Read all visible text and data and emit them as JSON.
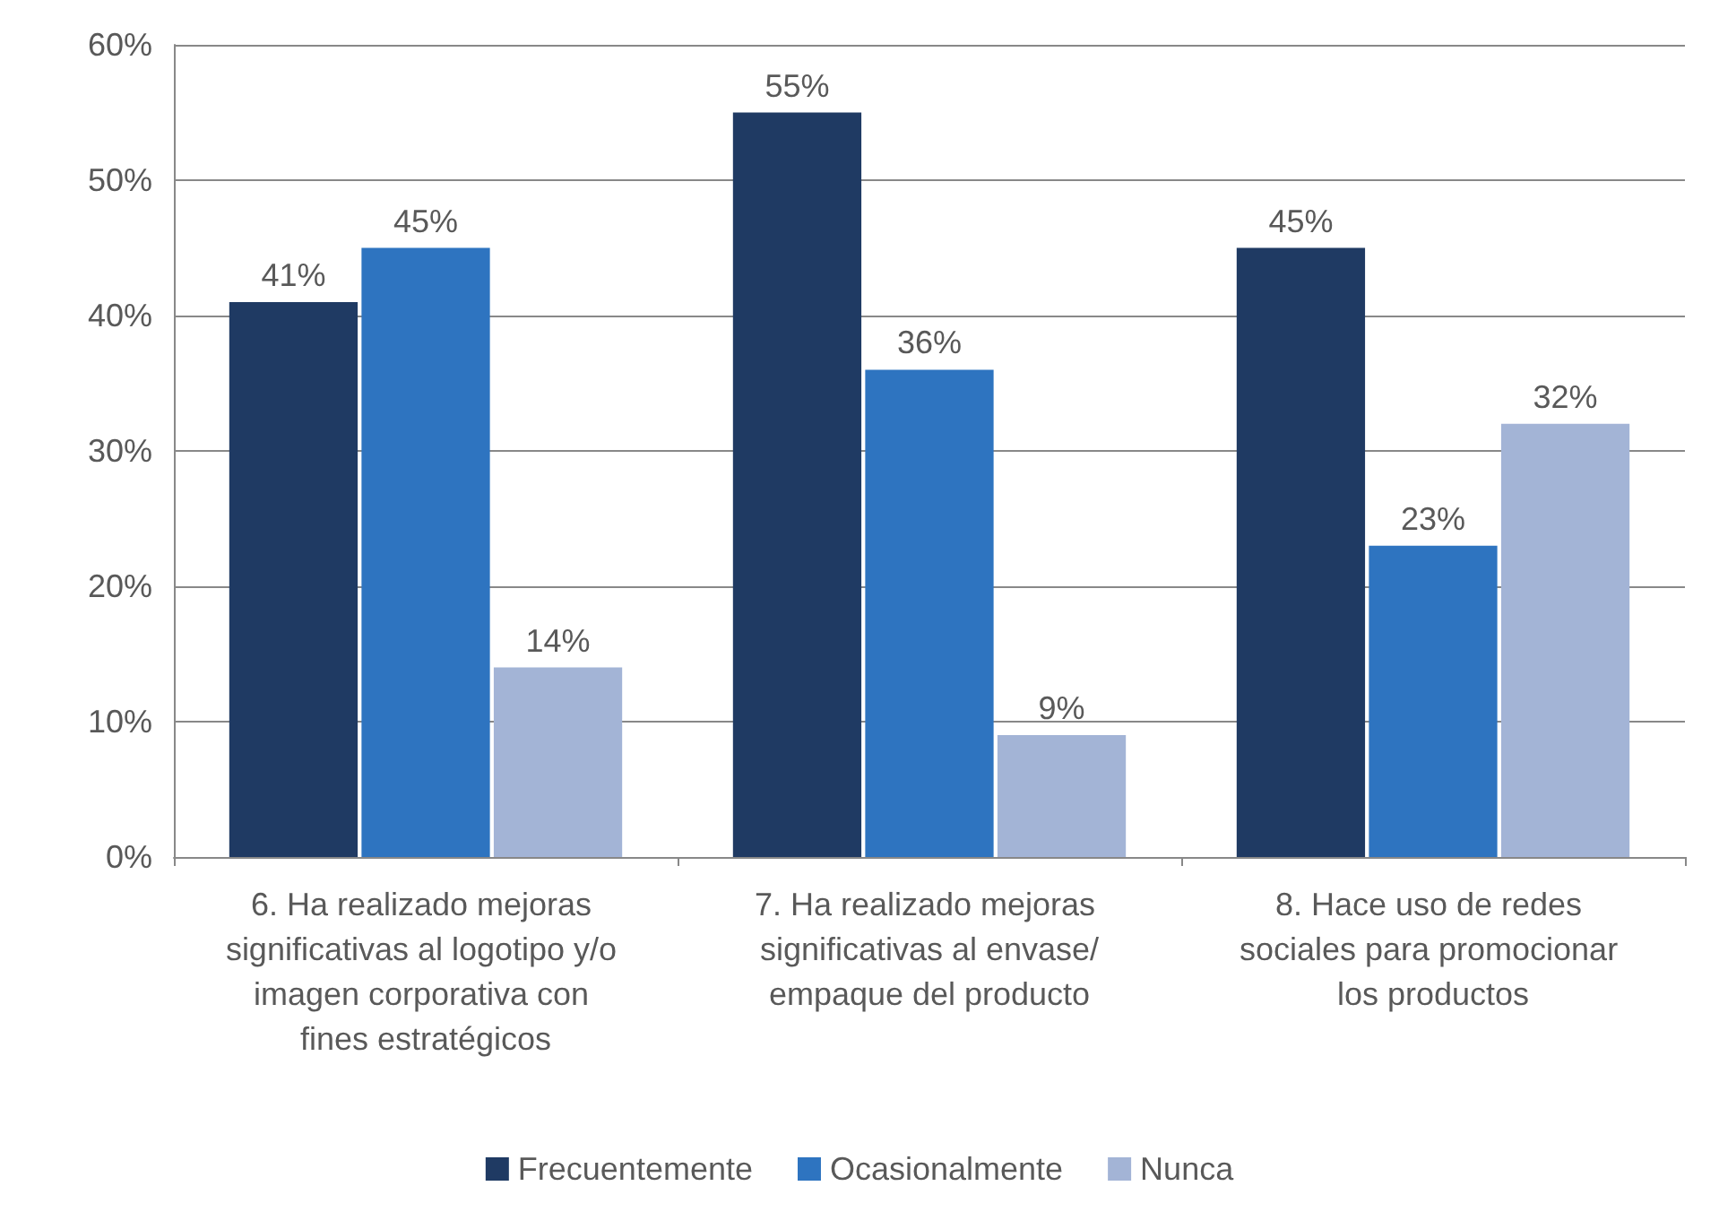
{
  "chart_data": {
    "type": "bar",
    "categories": [
      "6. Ha realizado mejoras significativas al logotipo y/o imagen corporativa con fines estratégicos",
      "7. Ha realizado mejoras significativas al envase/empaque del producto",
      "8. Hace uso de redes sociales para promocionar los productos"
    ],
    "series": [
      {
        "name": "Frecuentemente",
        "color": "#1f3a63",
        "values": [
          41,
          55,
          45
        ],
        "value_labels": [
          "41%",
          "55%",
          "45%"
        ]
      },
      {
        "name": "Ocasionalmente",
        "color": "#2e74c0",
        "values": [
          45,
          36,
          23
        ],
        "value_labels": [
          "45%",
          "36%",
          "23%"
        ]
      },
      {
        "name": "Nunca",
        "color": "#a3b4d6",
        "values": [
          14,
          9,
          32
        ],
        "value_labels": [
          "14%",
          "9%",
          "32%"
        ]
      }
    ],
    "ylim": [
      0,
      60
    ],
    "yticks": [
      {
        "value": 0,
        "label": "0%"
      },
      {
        "value": 10,
        "label": "10%"
      },
      {
        "value": 20,
        "label": "20%"
      },
      {
        "value": 30,
        "label": "30%"
      },
      {
        "value": 40,
        "label": "40%"
      },
      {
        "value": 50,
        "label": "50%"
      },
      {
        "value": 60,
        "label": "60%"
      }
    ],
    "grid": "y",
    "legend": "bottom"
  }
}
